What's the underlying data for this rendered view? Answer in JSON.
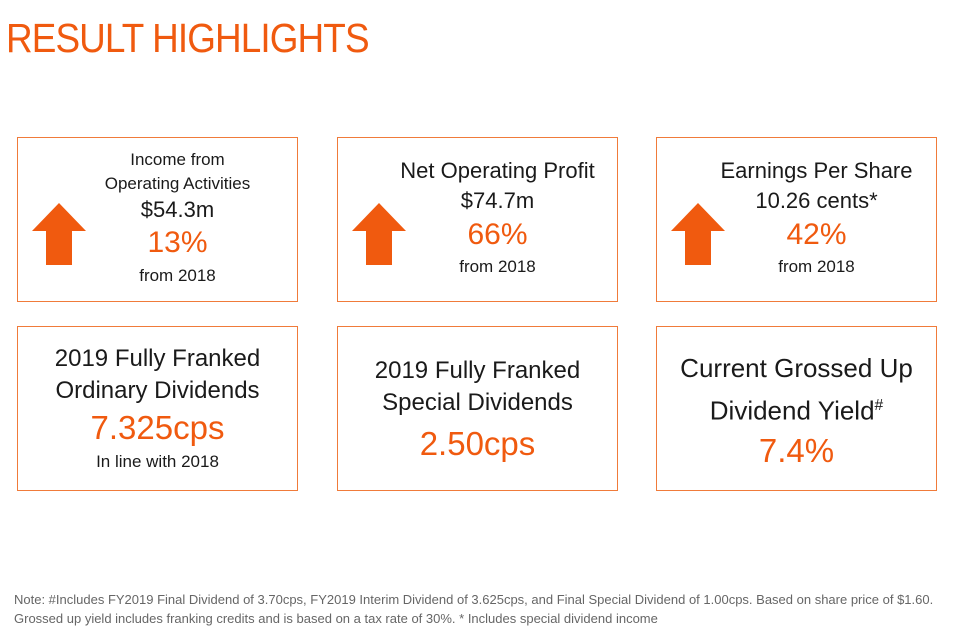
{
  "title": "RESULT HIGHLIGHTS",
  "cards": [
    {
      "lines": [
        "Income from",
        "Operating Activities",
        "$54.3m"
      ],
      "value": "13%",
      "sub": "from 2018",
      "arrow": "up-arrow-icon"
    },
    {
      "lines": [
        "Net Operating Profit",
        "$74.7m"
      ],
      "value": "66%",
      "sub": "from 2018",
      "arrow": "up-arrow-icon"
    },
    {
      "lines": [
        "Earnings Per Share",
        "10.26 cents*"
      ],
      "value": "42%",
      "sub": "from 2018",
      "arrow": "up-arrow-icon"
    },
    {
      "lines": [
        "2019 Fully Franked",
        "Ordinary Dividends"
      ],
      "value": "7.325cps",
      "sub": "In line with 2018"
    },
    {
      "lines": [
        "2019 Fully Franked",
        "Special Dividends"
      ],
      "value": "2.50cps"
    },
    {
      "lines": [
        "Current Grossed Up",
        "Dividend Yield",
        "#"
      ],
      "value": "7.4%"
    }
  ],
  "note": "Note: #Includes FY2019 Final Dividend of 3.70cps, FY2019 Interim Dividend of 3.625cps, and Final Special Dividend of 1.00cps. Based on share price of $1.60. Grossed up yield includes franking credits and is based on a tax rate of 30%. * Includes special dividend income",
  "colors": {
    "accent": "#f05a0f",
    "border": "#f07b3a",
    "arrow": "#f05a0f"
  }
}
